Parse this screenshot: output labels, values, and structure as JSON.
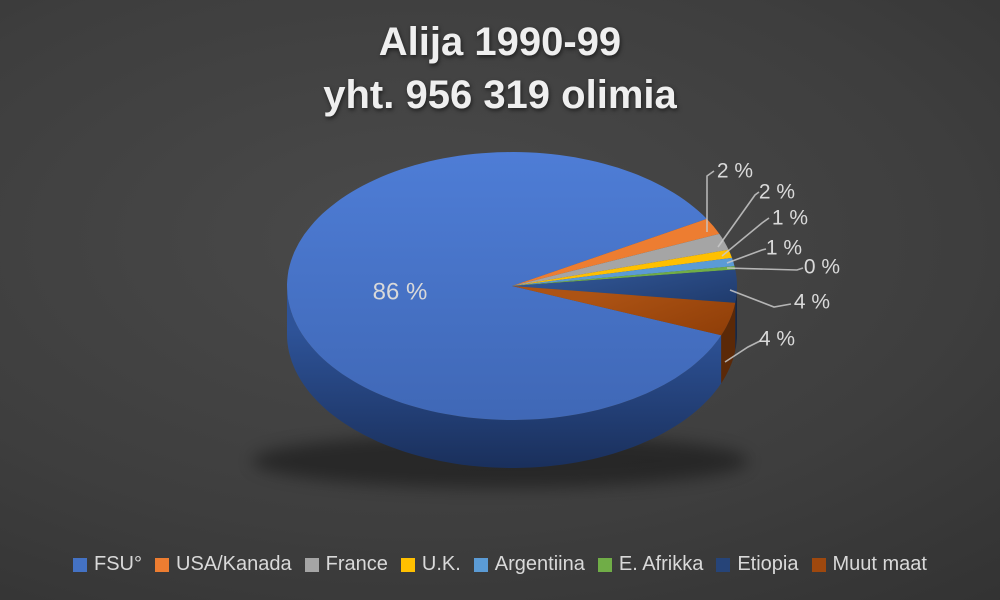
{
  "title": {
    "line1": "Alija 1990-99",
    "line2": "yht. 956 319 olimia"
  },
  "chart_data": {
    "type": "pie",
    "is_3d": true,
    "title": "Alija 1990-99 yht. 956 319 olimia",
    "categories": [
      "FSU°",
      "USA/Kanada",
      "France",
      "U.K.",
      "Argentiina",
      "E. Afrikka",
      "Etiopia",
      "Muut maat"
    ],
    "values_percent": [
      86,
      2,
      2,
      1,
      1,
      0,
      4,
      4
    ],
    "data_labels": [
      "86 %",
      "2 %",
      "2 %",
      "1 %",
      "1 %",
      "0 %",
      "4 %",
      "4 %"
    ],
    "colors": [
      "#4472C4",
      "#ED7D31",
      "#A5A5A5",
      "#FFC000",
      "#5B9BD5",
      "#70AD47",
      "#264478",
      "#9E480E"
    ],
    "legend_position": "bottom",
    "label_color": "#D9D9D9",
    "background": "dark-gray-radial-gradient",
    "total_olim": "956 319"
  },
  "legend": {
    "items": [
      {
        "label": "FSU°",
        "color": "#4472C4"
      },
      {
        "label": "USA/Kanada",
        "color": "#ED7D31"
      },
      {
        "label": "France",
        "color": "#A5A5A5"
      },
      {
        "label": "U.K.",
        "color": "#FFC000"
      },
      {
        "label": "Argentiina",
        "color": "#5B9BD5"
      },
      {
        "label": "E. Afrikka",
        "color": "#70AD47"
      },
      {
        "label": "Etiopia",
        "color": "#264478"
      },
      {
        "label": "Muut maat",
        "color": "#9E480E"
      }
    ]
  }
}
